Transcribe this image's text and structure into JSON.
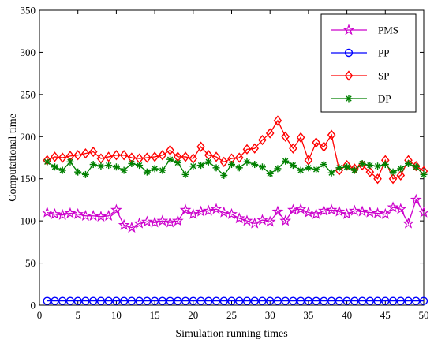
{
  "chart_data": {
    "type": "line",
    "title": "",
    "xlabel": "Simulation running times",
    "ylabel": "Computational time",
    "xlim": [
      0,
      50
    ],
    "ylim": [
      0,
      350
    ],
    "xticks": [
      0,
      5,
      10,
      15,
      20,
      25,
      30,
      35,
      40,
      45,
      50
    ],
    "yticks": [
      0,
      50,
      100,
      150,
      200,
      250,
      300,
      350
    ],
    "grid": false,
    "legend_position": "top-right",
    "x": [
      1,
      2,
      3,
      4,
      5,
      6,
      7,
      8,
      9,
      10,
      11,
      12,
      13,
      14,
      15,
      16,
      17,
      18,
      19,
      20,
      21,
      22,
      23,
      24,
      25,
      26,
      27,
      28,
      29,
      30,
      31,
      32,
      33,
      34,
      35,
      36,
      37,
      38,
      39,
      40,
      41,
      42,
      43,
      44,
      45,
      46,
      47,
      48,
      49,
      50
    ],
    "series": [
      {
        "name": "PMS",
        "color": "#cc00cc",
        "marker": "star",
        "values": [
          110,
          108,
          107,
          109,
          108,
          106,
          106,
          105,
          106,
          113,
          95,
          92,
          97,
          99,
          98,
          100,
          98,
          100,
          113,
          108,
          111,
          112,
          114,
          110,
          108,
          103,
          100,
          97,
          101,
          99,
          111,
          100,
          113,
          114,
          110,
          108,
          112,
          113,
          111,
          108,
          112,
          111,
          110,
          109,
          108,
          116,
          114,
          97,
          125,
          110
        ]
      },
      {
        "name": "PP",
        "color": "#0000ff",
        "marker": "circle",
        "values": [
          5,
          5,
          5,
          5,
          5,
          5,
          5,
          5,
          5,
          5,
          5,
          5,
          5,
          5,
          5,
          5,
          5,
          5,
          5,
          5,
          5,
          5,
          5,
          5,
          5,
          5,
          5,
          5,
          5,
          5,
          5,
          5,
          5,
          5,
          5,
          5,
          5,
          5,
          5,
          5,
          5,
          5,
          5,
          5,
          5,
          5,
          5,
          5,
          5,
          5
        ]
      },
      {
        "name": "SP",
        "color": "#ff0000",
        "marker": "diamond",
        "values": [
          172,
          176,
          175,
          177,
          178,
          180,
          182,
          174,
          176,
          178,
          178,
          175,
          174,
          175,
          176,
          178,
          184,
          176,
          176,
          174,
          188,
          178,
          176,
          170,
          174,
          175,
          185,
          186,
          196,
          204,
          219,
          200,
          186,
          199,
          172,
          193,
          188,
          202,
          160,
          166,
          162,
          166,
          158,
          150,
          172,
          150,
          154,
          172,
          165,
          159
        ]
      },
      {
        "name": "DP",
        "color": "#008000",
        "marker": "asterisk",
        "values": [
          170,
          164,
          160,
          170,
          158,
          155,
          167,
          165,
          166,
          164,
          160,
          168,
          166,
          158,
          162,
          160,
          173,
          169,
          155,
          165,
          166,
          170,
          163,
          154,
          167,
          163,
          170,
          167,
          164,
          156,
          162,
          171,
          166,
          160,
          163,
          161,
          167,
          157,
          163,
          164,
          160,
          168,
          166,
          165,
          167,
          158,
          162,
          168,
          164,
          155
        ]
      }
    ]
  }
}
